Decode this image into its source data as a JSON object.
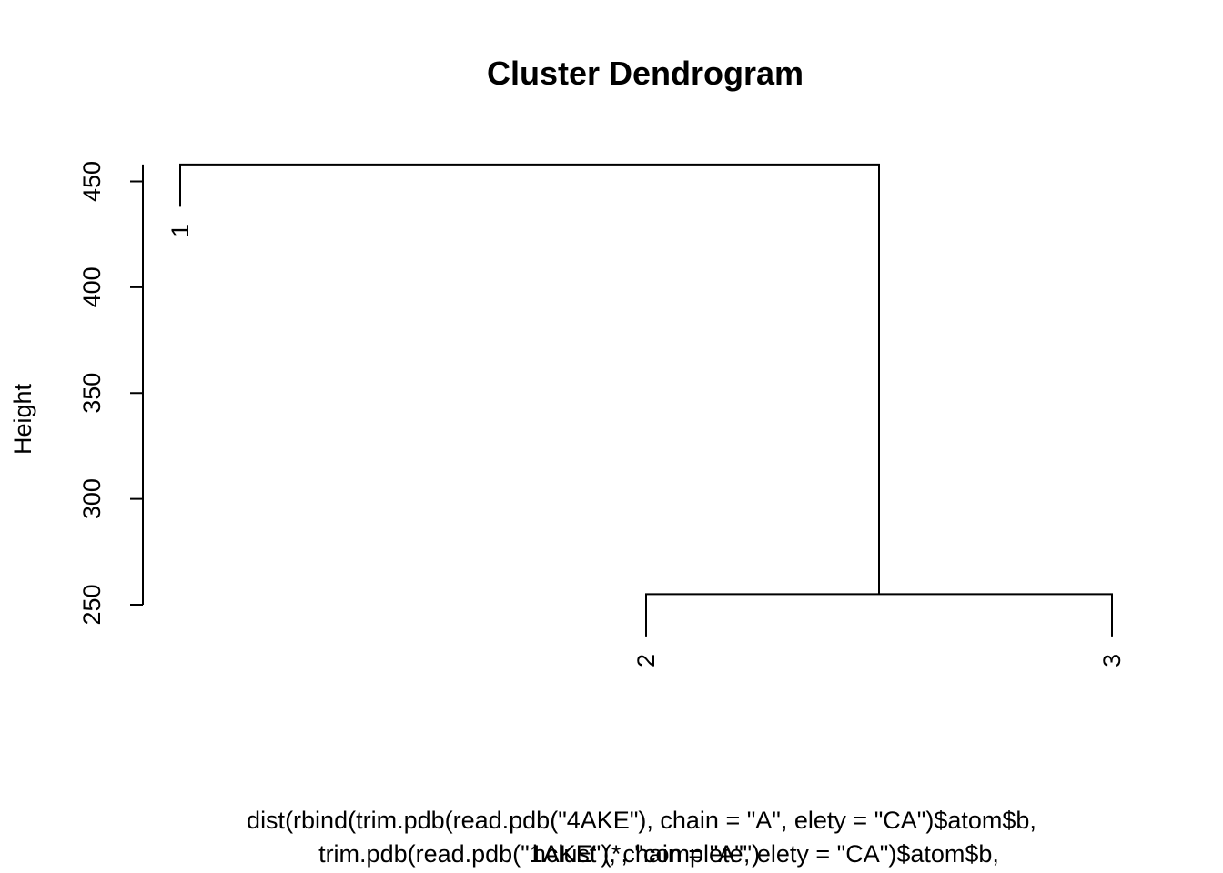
{
  "chart_data": {
    "type": "dendrogram",
    "title": "Cluster Dendrogram",
    "ylabel": "Height",
    "xlabel_lines": [
      "dist(rbind(trim.pdb(read.pdb(\"4AKE\"), chain = \"A\", elety = \"CA\")$atom$b,",
      "trim.pdb(read.pdb(\"1AKE\"), chain = \"A\", elety = \"CA\")$atom$b,",
      "hclust (*, \"complete\")"
    ],
    "yticks": [
      250,
      300,
      350,
      400,
      450
    ],
    "ylim": [
      250,
      458
    ],
    "leaves": [
      "1",
      "2",
      "3"
    ],
    "merges": [
      {
        "left": "2",
        "right": "3",
        "height": 255
      },
      {
        "left": "1",
        "right": "2-3",
        "height": 458
      }
    ],
    "leaf_drop": 20
  }
}
